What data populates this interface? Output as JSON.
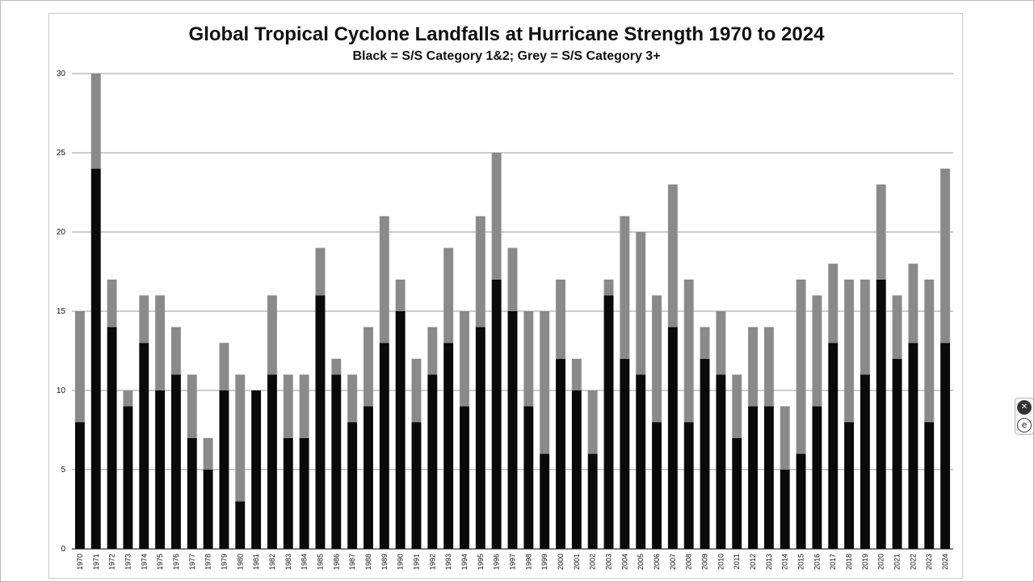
{
  "chart_data": {
    "type": "bar",
    "stacked": true,
    "title": "Global Tropical Cyclone Landfalls at Hurricane Strength 1970 to 2024",
    "subtitle": "Black = S/S Category 1&2; Grey = S/S Category 3+",
    "xlabel": "",
    "ylabel": "",
    "ylim": [
      0,
      30
    ],
    "yticks": [
      0,
      5,
      10,
      15,
      20,
      25,
      30
    ],
    "grid": true,
    "categories": [
      "1970",
      "1971",
      "1972",
      "1973",
      "1974",
      "1975",
      "1976",
      "1977",
      "1978",
      "1979",
      "1980",
      "1981",
      "1982",
      "1983",
      "1984",
      "1985",
      "1986",
      "1987",
      "1988",
      "1989",
      "1990",
      "1991",
      "1992",
      "1993",
      "1994",
      "1995",
      "1996",
      "1997",
      "1998",
      "1999",
      "2000",
      "2001",
      "2002",
      "2003",
      "2004",
      "2005",
      "2006",
      "2007",
      "2008",
      "2009",
      "2010",
      "2011",
      "2012",
      "2013",
      "2014",
      "2015",
      "2016",
      "2017",
      "2018",
      "2019",
      "2020",
      "2021",
      "2022",
      "2023",
      "2024"
    ],
    "series": [
      {
        "color": "#0a0a0a",
        "values": [
          8,
          24,
          14,
          9,
          13,
          10,
          11,
          7,
          5,
          10,
          3,
          10,
          11,
          7,
          7,
          16,
          11,
          8,
          9,
          13,
          15,
          8,
          11,
          13,
          9,
          14,
          17,
          15,
          9,
          6,
          12,
          10,
          6,
          16,
          12,
          11,
          8,
          14,
          8,
          12,
          11,
          7,
          9,
          9,
          5,
          6,
          9,
          13,
          8,
          11,
          17,
          12,
          13,
          8,
          13
        ]
      },
      {
        "color": "#8a8a8a",
        "values": [
          7,
          6,
          3,
          1,
          3,
          6,
          3,
          4,
          2,
          3,
          8,
          0,
          5,
          4,
          4,
          3,
          1,
          3,
          5,
          8,
          2,
          4,
          3,
          6,
          6,
          7,
          8,
          4,
          6,
          9,
          5,
          2,
          4,
          1,
          9,
          9,
          8,
          9,
          9,
          2,
          4,
          4,
          5,
          5,
          4,
          11,
          7,
          5,
          9,
          6,
          6,
          4,
          5,
          9,
          11
        ]
      }
    ]
  },
  "controls": {
    "close_glyph": "✕",
    "expand_glyph": "e"
  }
}
